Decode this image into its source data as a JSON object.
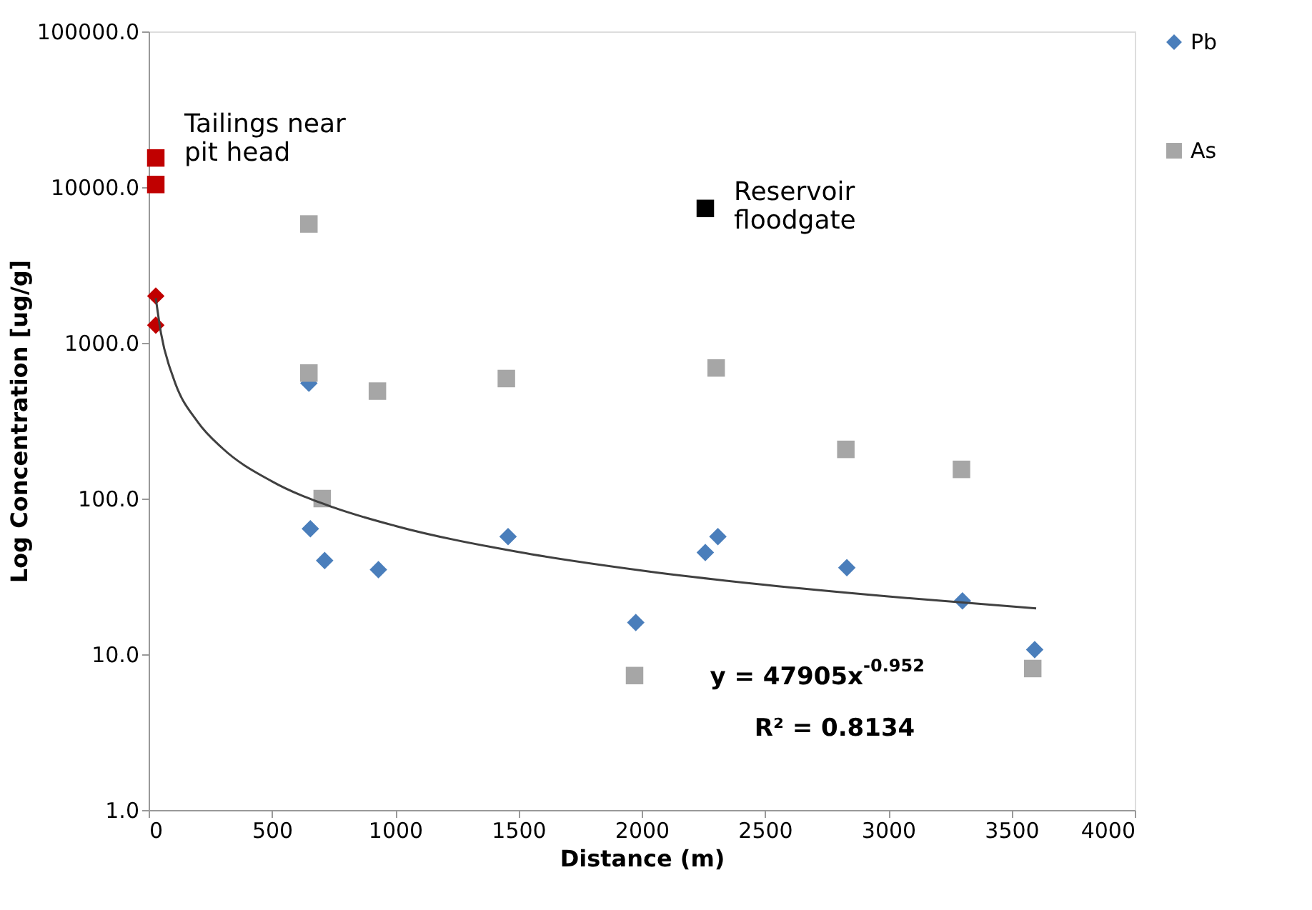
{
  "chart_data": {
    "type": "scatter",
    "xlabel": "Distance (m)",
    "ylabel": "Log Concentration [ug/g]",
    "log": "y",
    "xlim": [
      0,
      4000
    ],
    "xticks": [
      0,
      500,
      1000,
      1500,
      2000,
      2500,
      3000,
      3500,
      4000
    ],
    "ylim": [
      1,
      100000
    ],
    "yticks": [
      {
        "value": 1,
        "label": "1.0"
      },
      {
        "value": 10,
        "label": "10.0"
      },
      {
        "value": 100,
        "label": "100.0"
      },
      {
        "value": 1000,
        "label": "1000.0"
      },
      {
        "value": 10000,
        "label": "10000.0"
      },
      {
        "value": 100000,
        "label": "100000.0"
      }
    ],
    "grid": false,
    "legend": "right",
    "series": [
      {
        "name": "Pb",
        "marker": "diamond",
        "color": "#4a7ebb",
        "x": [
          29,
          29,
          650,
          656,
          714,
          932,
          1458,
          1976,
          2258,
          2309,
          2832,
          3301,
          3594
        ],
        "values": [
          2000,
          1300,
          550,
          64,
          40,
          35,
          57,
          16,
          45,
          57,
          36,
          22,
          10.7
        ],
        "colors": [
          "#c00000",
          "#c00000",
          "#4a7ebb",
          "#4a7ebb",
          "#4a7ebb",
          "#4a7ebb",
          "#4a7ebb",
          "#4a7ebb",
          "#4a7ebb",
          "#4a7ebb",
          "#4a7ebb",
          "#4a7ebb",
          "#4a7ebb"
        ]
      },
      {
        "name": "As",
        "marker": "square",
        "color": "#a6a6a6",
        "x": [
          29,
          29,
          650,
          650,
          704,
          928,
          1451,
          1971,
          2258,
          2302,
          2828,
          3297,
          3586
        ],
        "values": [
          15400,
          10400,
          5800,
          640,
          100,
          490,
          590,
          7.3,
          7300,
          690,
          207,
          154,
          8.1
        ],
        "colors": [
          "#c00000",
          "#c00000",
          "#a6a6a6",
          "#a6a6a6",
          "#a6a6a6",
          "#a6a6a6",
          "#a6a6a6",
          "#a6a6a6",
          "#000000",
          "#a6a6a6",
          "#a6a6a6",
          "#a6a6a6",
          "#a6a6a6"
        ]
      },
      {
        "type": "line",
        "color": "#404040",
        "line_style": "solid",
        "marker": "none",
        "x": [
          29,
          50,
          100,
          200,
          300,
          500,
          750,
          1000,
          1500,
          2000,
          2500,
          3000,
          3600
        ],
        "values": [
          1941,
          1156,
          597,
          309,
          210,
          129,
          87.7,
          66.8,
          45.4,
          34.5,
          27.9,
          23.5,
          19.7
        ]
      }
    ],
    "annotations": [
      {
        "text": "Tailings near\npit head",
        "x": 29,
        "y": 15400
      },
      {
        "text": "Reservoir\nfloodgate",
        "x": 2258,
        "y": 7300
      },
      "y = 47905x$^{-0.952}$",
      "R² = 0.8134"
    ]
  }
}
